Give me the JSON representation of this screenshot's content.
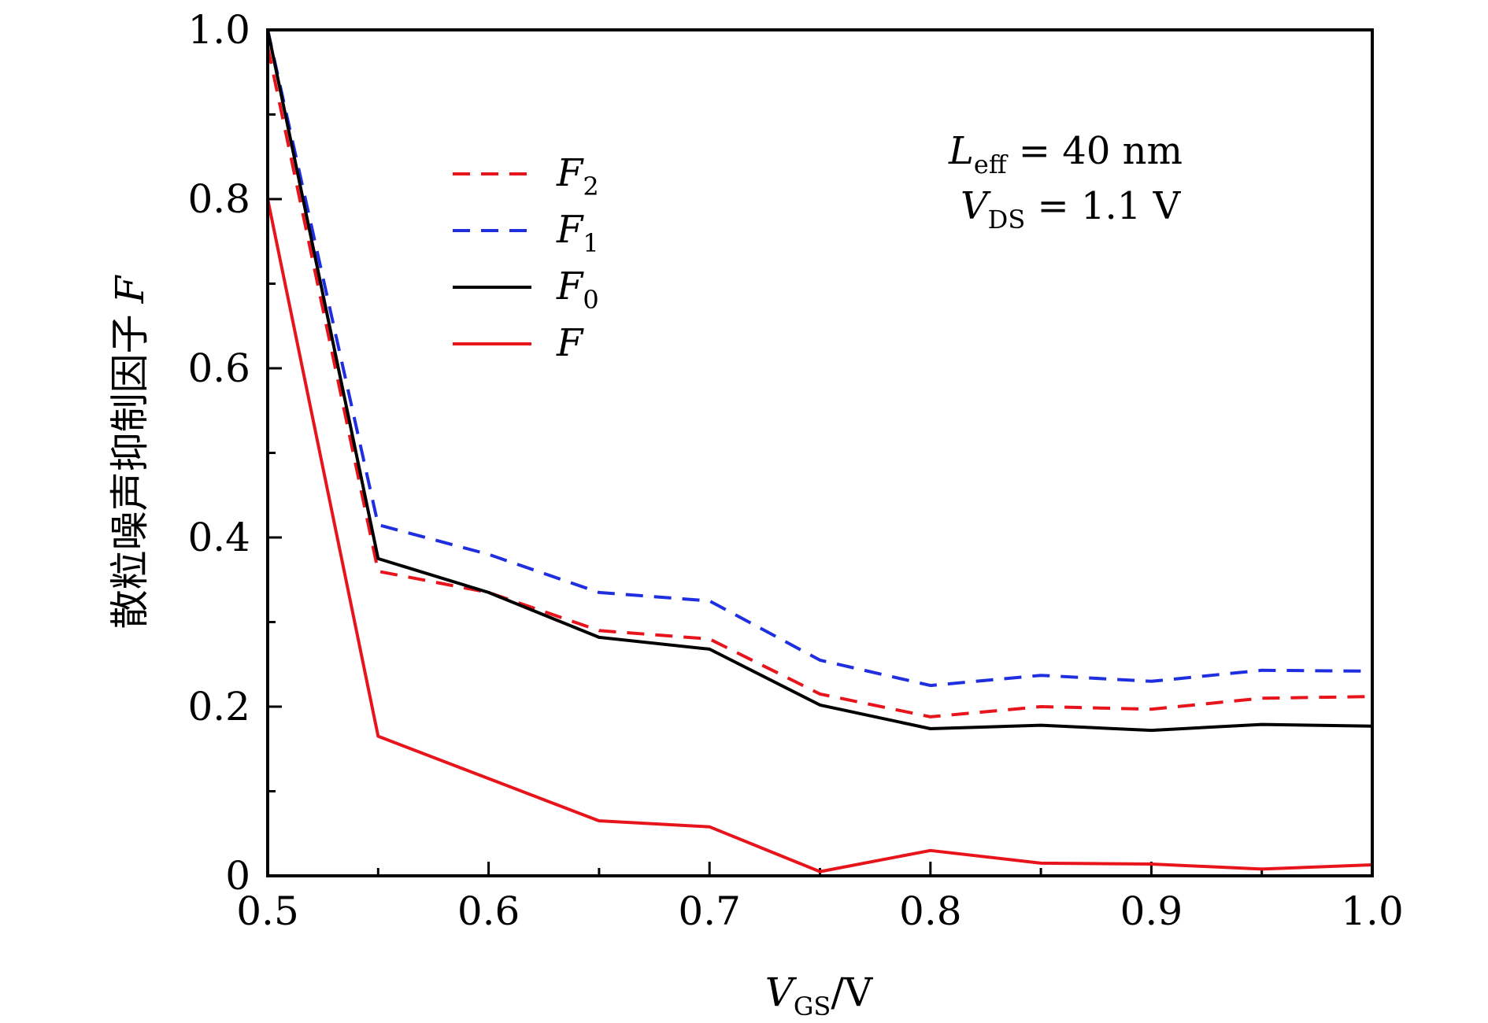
{
  "chart_data": {
    "type": "line",
    "title": "",
    "xlabel": "V_GS/V",
    "xlabel_main": "V",
    "xlabel_sub": "GS",
    "xlabel_unit": "/V",
    "ylabel": "散粒噪声抑制因子 F",
    "ylabel_text": "散粒噪声抑制因子",
    "ylabel_symbol": "F",
    "xlim": [
      0.5,
      1.0
    ],
    "ylim": [
      0,
      1.0
    ],
    "x_ticks": [
      0.5,
      0.6,
      0.7,
      0.8,
      0.9,
      1.0
    ],
    "x_tick_labels": [
      "0.5",
      "0.6",
      "0.7",
      "0.8",
      "0.9",
      "1.0"
    ],
    "y_ticks": [
      0,
      0.2,
      0.4,
      0.6,
      0.8,
      1.0
    ],
    "y_tick_labels": [
      "0",
      "0.2",
      "0.4",
      "0.6",
      "0.8",
      "1.0"
    ],
    "grid": false,
    "legend_position": "top-left",
    "x": [
      0.5,
      0.55,
      0.6,
      0.65,
      0.7,
      0.75,
      0.8,
      0.85,
      0.9,
      0.95,
      1.0
    ],
    "series": [
      {
        "name": "F2",
        "label_main": "F",
        "label_sub": "2",
        "color": "#e8141c",
        "dash": "dashed",
        "values": [
          0.98,
          0.36,
          0.335,
          0.29,
          0.28,
          0.215,
          0.188,
          0.2,
          0.197,
          0.21,
          0.212
        ]
      },
      {
        "name": "F1",
        "label_main": "F",
        "label_sub": "1",
        "color": "#1f2fe0",
        "dash": "dashed",
        "values": [
          1.0,
          0.415,
          0.38,
          0.335,
          0.325,
          0.255,
          0.225,
          0.237,
          0.23,
          0.243,
          0.242
        ]
      },
      {
        "name": "F0",
        "label_main": "F",
        "label_sub": "0",
        "color": "#000000",
        "dash": "solid",
        "values": [
          1.0,
          0.375,
          0.335,
          0.282,
          0.268,
          0.202,
          0.174,
          0.178,
          0.172,
          0.179,
          0.177
        ]
      },
      {
        "name": "F",
        "label_main": "F",
        "label_sub": "",
        "color": "#e8141c",
        "dash": "solid",
        "values": [
          0.8,
          0.165,
          0.115,
          0.065,
          0.058,
          0.005,
          0.03,
          0.015,
          0.014,
          0.008,
          0.013
        ]
      }
    ],
    "annotations": [
      {
        "main": "L",
        "sub": "eff",
        "rest": " = 40 nm"
      },
      {
        "main": "V",
        "sub": "DS",
        "rest": " = 1.1 V"
      }
    ]
  }
}
